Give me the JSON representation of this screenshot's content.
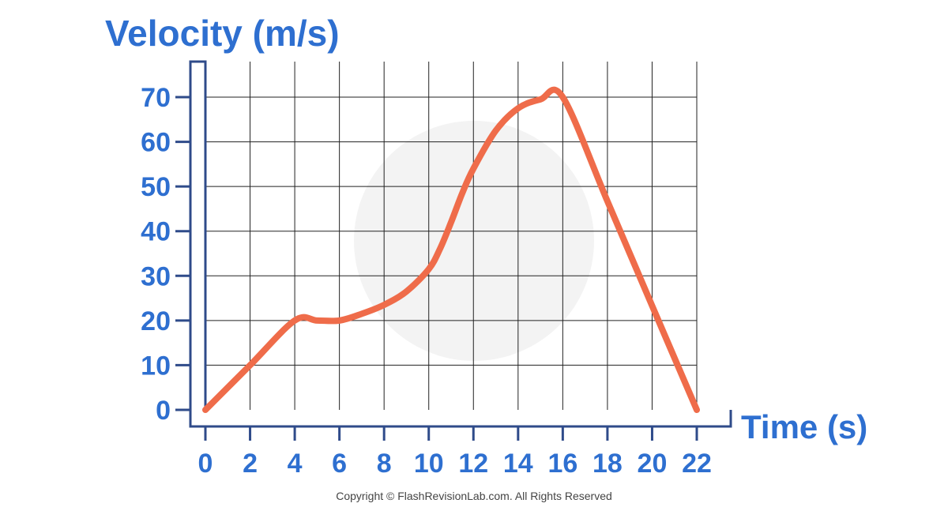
{
  "chart_data": {
    "type": "line",
    "ylabel": "Velocity (m/s)",
    "xlabel": "Time (s)",
    "x_ticks": [
      0,
      2,
      4,
      6,
      8,
      10,
      12,
      14,
      16,
      18,
      20,
      22
    ],
    "y_ticks": [
      0,
      10,
      20,
      30,
      40,
      50,
      60,
      70
    ],
    "xlim": [
      0,
      22
    ],
    "ylim": [
      0,
      70
    ],
    "grid": true,
    "series": [
      {
        "x": [
          0,
          2,
          4,
          5,
          6,
          7,
          8,
          9,
          10,
          10.5,
          11,
          11.5,
          12,
          13,
          14,
          15,
          16,
          18,
          20,
          22
        ],
        "y": [
          0,
          10,
          20,
          20,
          20,
          21.5,
          23.5,
          26.5,
          31.5,
          36,
          42,
          48.5,
          54,
          62.5,
          67.5,
          69.5,
          70,
          46.7,
          23.3,
          0
        ]
      }
    ],
    "colors": {
      "line": "#ef6c4a",
      "axis": "#2f4b8a",
      "grid": "#222222",
      "text": "#2e6fd0"
    }
  },
  "footer": {
    "copyright": "Copyright © FlashRevisionLab.com. All Rights Reserved"
  }
}
